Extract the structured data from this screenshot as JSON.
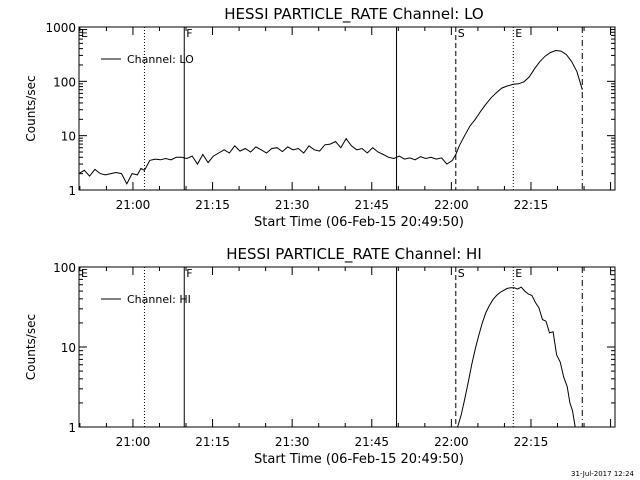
{
  "footer": {
    "timestamp": "31-Jul-2017 12:24"
  },
  "chart_data": [
    {
      "type": "line",
      "title": "HESSI PARTICLE_RATE Channel: LO",
      "xlabel": "Start Time (06-Feb-15 20:49:50)",
      "ylabel": "Counts/sec",
      "yscale": "log",
      "ylim": [
        1,
        1000
      ],
      "yticks": [
        1,
        10,
        100,
        1000
      ],
      "ytick_labels": [
        "1",
        "10",
        "100",
        "1000"
      ],
      "xlim": [
        "20:49:50",
        "22:30:50"
      ],
      "xticks": [
        "21:00",
        "21:15",
        "21:30",
        "21:45",
        "22:00",
        "22:15"
      ],
      "legend": {
        "label": "Channel: LO",
        "position": "top-left"
      },
      "markers": [
        {
          "time": "20:49:50",
          "label": "E",
          "style": "none"
        },
        {
          "time": "21:02:10",
          "label": "",
          "style": "dotted"
        },
        {
          "time": "21:09:40",
          "label": "F",
          "style": "solid"
        },
        {
          "time": "21:49:40",
          "label": "",
          "style": "solid"
        },
        {
          "time": "22:00:50",
          "label": "S",
          "style": "dashed"
        },
        {
          "time": "22:11:40",
          "label": "E",
          "style": "dotted"
        },
        {
          "time": "22:24:40",
          "label": "",
          "style": "dashdot"
        }
      ],
      "series": [
        {
          "name": "Channel: LO",
          "x": [
            "20:49:50",
            "20:50:50",
            "20:51:50",
            "20:52:50",
            "20:53:50",
            "20:54:50",
            "20:55:50",
            "20:56:50",
            "20:57:50",
            "20:58:50",
            "20:59:50",
            "21:00:50",
            "21:01:30",
            "21:02:10",
            "21:03:10",
            "21:04:10",
            "21:05:10",
            "21:06:10",
            "21:07:10",
            "21:08:10",
            "21:09:10",
            "21:10:10",
            "21:11:10",
            "21:12:10",
            "21:13:10",
            "21:14:10",
            "21:15:10",
            "21:16:10",
            "21:17:10",
            "21:18:10",
            "21:19:10",
            "21:20:10",
            "21:21:10",
            "21:22:10",
            "21:23:10",
            "21:24:10",
            "21:25:10",
            "21:26:10",
            "21:27:10",
            "21:28:10",
            "21:29:10",
            "21:30:10",
            "21:31:10",
            "21:32:10",
            "21:33:10",
            "21:34:10",
            "21:35:10",
            "21:36:10",
            "21:37:10",
            "21:38:10",
            "21:39:10",
            "21:40:10",
            "21:41:10",
            "21:42:10",
            "21:43:10",
            "21:44:10",
            "21:45:10",
            "21:46:10",
            "21:47:10",
            "21:48:10",
            "21:49:10",
            "21:50:10",
            "21:51:10",
            "21:52:10",
            "21:53:10",
            "21:54:10",
            "21:55:10",
            "21:56:10",
            "21:57:10",
            "21:58:10",
            "21:59:10",
            "22:00:10",
            "22:00:50",
            "22:01:30",
            "22:02:30",
            "22:03:30",
            "22:04:30",
            "22:05:30",
            "22:06:30",
            "22:07:30",
            "22:08:30",
            "22:09:30",
            "22:10:30",
            "22:11:40",
            "22:12:40",
            "22:13:40",
            "22:14:40",
            "22:15:40",
            "22:16:40",
            "22:17:40",
            "22:18:40",
            "22:19:40",
            "22:20:40",
            "22:21:40",
            "22:22:40",
            "22:23:40",
            "22:24:40"
          ],
          "y": [
            2,
            2.3,
            1.8,
            2.4,
            2,
            1.9,
            2,
            2.1,
            2,
            1.3,
            2,
            1.9,
            2.5,
            2.3,
            3.5,
            3.7,
            3.6,
            3.8,
            3.6,
            4,
            4,
            3.8,
            4.2,
            3,
            4.5,
            3.2,
            4.2,
            4.8,
            5.5,
            4.8,
            6.5,
            5.2,
            5.8,
            5,
            6.2,
            5.5,
            4.8,
            5.8,
            6,
            5.1,
            6.2,
            5.5,
            5.8,
            4.8,
            6.5,
            5.5,
            5.2,
            6.8,
            7,
            7.8,
            6,
            8.8,
            6.5,
            5.5,
            5.8,
            4.8,
            6,
            5,
            4.5,
            4,
            3.8,
            4.2,
            3.7,
            3.9,
            3.6,
            4.1,
            3.8,
            4,
            3.7,
            3.9,
            3,
            3.5,
            4.5,
            6.5,
            10,
            15,
            20,
            28,
            38,
            50,
            62,
            75,
            82,
            88,
            90,
            98,
            120,
            170,
            230,
            290,
            340,
            370,
            360,
            310,
            230,
            150,
            70
          ]
        }
      ]
    },
    {
      "type": "line",
      "title": "HESSI PARTICLE_RATE Channel: HI",
      "xlabel": "Start Time (06-Feb-15 20:49:50)",
      "ylabel": "Counts/sec",
      "yscale": "log",
      "ylim": [
        1,
        100
      ],
      "yticks": [
        1,
        10,
        100
      ],
      "ytick_labels": [
        "1",
        "10",
        "100"
      ],
      "xlim": [
        "20:49:50",
        "22:30:50"
      ],
      "xticks": [
        "21:00",
        "21:15",
        "21:30",
        "21:45",
        "22:00",
        "22:15"
      ],
      "legend": {
        "label": "Channel: HI",
        "position": "top-left"
      },
      "markers": [
        {
          "time": "20:49:50",
          "label": "E",
          "style": "none"
        },
        {
          "time": "21:02:10",
          "label": "",
          "style": "dotted"
        },
        {
          "time": "21:09:40",
          "label": "F",
          "style": "solid"
        },
        {
          "time": "21:49:40",
          "label": "",
          "style": "solid"
        },
        {
          "time": "22:00:50",
          "label": "S",
          "style": "dashed"
        },
        {
          "time": "22:11:40",
          "label": "E",
          "style": "dotted"
        },
        {
          "time": "22:24:40",
          "label": "",
          "style": "dashdot"
        }
      ],
      "series": [
        {
          "name": "Channel: HI",
          "x": [
            "22:01:10",
            "22:01:50",
            "22:02:30",
            "22:03:10",
            "22:03:50",
            "22:04:30",
            "22:05:10",
            "22:05:50",
            "22:06:30",
            "22:07:10",
            "22:07:50",
            "22:08:30",
            "22:09:10",
            "22:09:50",
            "22:10:30",
            "22:11:10",
            "22:11:50",
            "22:12:30",
            "22:13:10",
            "22:13:50",
            "22:14:30",
            "22:15:10",
            "22:15:50",
            "22:16:30",
            "22:17:10",
            "22:17:50",
            "22:18:30",
            "22:19:10",
            "22:19:50",
            "22:20:30",
            "22:21:10",
            "22:21:50",
            "22:22:20",
            "22:22:50",
            "22:23:20"
          ],
          "y": [
            1,
            1.4,
            2.2,
            3.6,
            6,
            9.5,
            14,
            20,
            27,
            33,
            39,
            44,
            48,
            51,
            54,
            55,
            55,
            53,
            56,
            50,
            46,
            44,
            36,
            31,
            22,
            21,
            15,
            15.5,
            8,
            6.5,
            4.2,
            3.2,
            2,
            1.6,
            1
          ]
        }
      ]
    }
  ]
}
